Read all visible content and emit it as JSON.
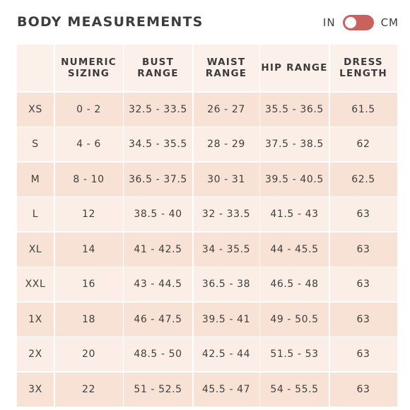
{
  "header": {
    "title": "BODY MEASUREMENTS",
    "unit_left": "IN",
    "unit_right": "CM",
    "toggle_state": "in"
  },
  "colors": {
    "toggle_accent": "#c9615e",
    "row_dark": "#f7e2d5",
    "row_light": "#fbeee6",
    "header_row": "#fcf1ea"
  },
  "table": {
    "columns": [
      "",
      "NUMERIC SIZING",
      "BUST RANGE",
      "WAIST RANGE",
      "HIP RANGE",
      "DRESS LENGTH"
    ],
    "rows": [
      [
        "XS",
        "0 - 2",
        "32.5 - 33.5",
        "26 - 27",
        "35.5 - 36.5",
        "61.5"
      ],
      [
        "S",
        "4 - 6",
        "34.5 - 35.5",
        "28 - 29",
        "37.5 - 38.5",
        "62"
      ],
      [
        "M",
        "8 - 10",
        "36.5 - 37.5",
        "30 - 31",
        "39.5 - 40.5",
        "62.5"
      ],
      [
        "L",
        "12",
        "38.5 - 40",
        "32 - 33.5",
        "41.5 - 43",
        "63"
      ],
      [
        "XL",
        "14",
        "41 - 42.5",
        "34 - 35.5",
        "44 - 45.5",
        "63"
      ],
      [
        "XXL",
        "16",
        "43 - 44.5",
        "36.5 - 38",
        "46.5 - 48",
        "63"
      ],
      [
        "1X",
        "18",
        "46 - 47.5",
        "39.5 - 41",
        "49 - 50.5",
        "63"
      ],
      [
        "2X",
        "20",
        "48.5 - 50",
        "42.5 - 44",
        "51.5 - 53",
        "63"
      ],
      [
        "3X",
        "22",
        "51 - 52.5",
        "45.5 - 47",
        "54 - 55.5",
        "63"
      ]
    ]
  }
}
